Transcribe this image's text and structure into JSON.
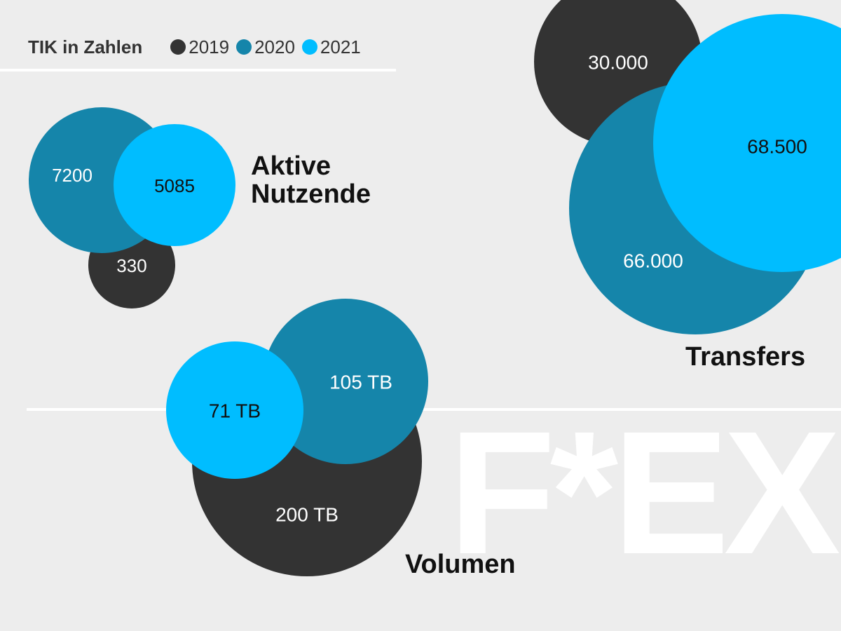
{
  "legend": {
    "title": "TIK in Zahlen",
    "items": [
      {
        "label": "2019",
        "color": "#333333"
      },
      {
        "label": "2020",
        "color": "#1585aa"
      },
      {
        "label": "2021",
        "color": "#00bdff"
      }
    ]
  },
  "watermark": "F*EX",
  "chart_data": {
    "type": "bubble",
    "title": "TIK in Zahlen",
    "series_names": [
      "2019",
      "2020",
      "2021"
    ],
    "colors": {
      "2019": "#333333",
      "2020": "#1585aa",
      "2021": "#00bdff"
    },
    "groups": [
      {
        "name_lines": [
          "Aktive",
          "Nutzende"
        ],
        "values": [
          {
            "year": "2019",
            "value": 330,
            "label": "330"
          },
          {
            "year": "2020",
            "value": 7200,
            "label": "7200"
          },
          {
            "year": "2021",
            "value": 5085,
            "label": "5085"
          }
        ]
      },
      {
        "name_lines": [
          "Transfers"
        ],
        "values": [
          {
            "year": "2019",
            "value": 30000,
            "label": "30.000"
          },
          {
            "year": "2020",
            "value": 66000,
            "label": "66.000"
          },
          {
            "year": "2021",
            "value": 68500,
            "label": "68.500"
          }
        ]
      },
      {
        "name_lines": [
          "Volumen"
        ],
        "values": [
          {
            "year": "2019",
            "value": 200,
            "unit": "TB",
            "label": "200 TB"
          },
          {
            "year": "2020",
            "value": 105,
            "unit": "TB",
            "label": "105 TB"
          },
          {
            "year": "2021",
            "value": 71,
            "unit": "TB",
            "label": "71 TB"
          }
        ]
      }
    ]
  }
}
